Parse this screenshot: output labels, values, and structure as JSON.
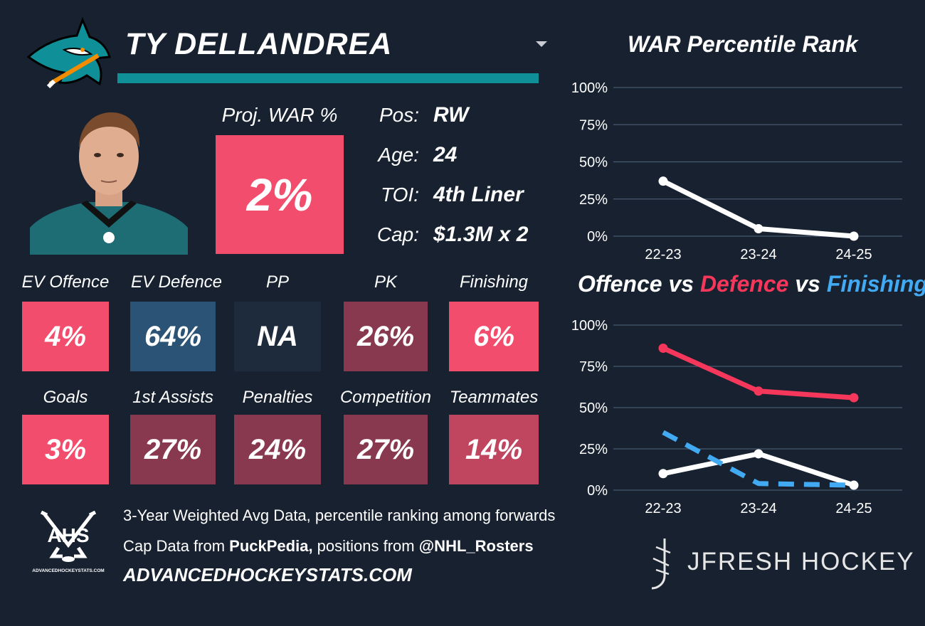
{
  "player": {
    "name": "TY DELLANDREA"
  },
  "colors": {
    "teal": "#0f8f98",
    "pink": "#f24d6c",
    "blue": "#2a5375",
    "dark": "#1d2b3c",
    "maroon": "#89394f",
    "line_white": "#ffffff",
    "line_red": "#f4375a",
    "line_blue": "#42aaf2"
  },
  "proj_war": {
    "label": "Proj. WAR %",
    "value": "2%"
  },
  "bio": [
    {
      "label": "Pos:",
      "value": "RW"
    },
    {
      "label": "Age:",
      "value": "24"
    },
    {
      "label": "TOI:",
      "value": "4th Liner"
    },
    {
      "label": "Cap:",
      "value": "$1.3M x 2"
    }
  ],
  "tiles_row1": [
    {
      "label": "EV Offence",
      "value": "4%",
      "color": "#f24d6c"
    },
    {
      "label": "EV Defence",
      "value": "64%",
      "color": "#2a5375"
    },
    {
      "label": "PP",
      "value": "NA",
      "color": "#1d2b3c"
    },
    {
      "label": "PK",
      "value": "26%",
      "color": "#89394f"
    },
    {
      "label": "Finishing",
      "value": "6%",
      "color": "#f24d6c"
    }
  ],
  "tiles_row2": [
    {
      "label": "Goals",
      "value": "3%",
      "color": "#f24d6c"
    },
    {
      "label": "1st Assists",
      "value": "27%",
      "color": "#89394f"
    },
    {
      "label": "Penalties",
      "value": "24%",
      "color": "#89394f"
    },
    {
      "label": "Competition",
      "value": "27%",
      "color": "#89394f"
    },
    {
      "label": "Teammates",
      "value": "14%",
      "color": "#c04660"
    }
  ],
  "footer": {
    "ahs_logo_text": "AHS",
    "ahs_logo_small": "ADVANCEDHOCKEYSTATS.COM",
    "line1": "3-Year Weighted Avg Data, percentile ranking among forwards",
    "line2_pre": "Cap Data from ",
    "line2_bold1": "PuckPedia,",
    "line2_mid": " positions from ",
    "line2_bold2": "@NHL_Rosters",
    "site": "ADVANCEDHOCKEYSTATS.COM",
    "brand": "JFRESH HOCKEY"
  },
  "chart_data": [
    {
      "type": "line",
      "title": "WAR Percentile Rank",
      "categories": [
        "22-23",
        "23-24",
        "24-25"
      ],
      "y_ticks": [
        "0%",
        "25%",
        "50%",
        "75%",
        "100%"
      ],
      "ylim": [
        0,
        100
      ],
      "series": [
        {
          "name": "WAR",
          "values": [
            37,
            5,
            0
          ],
          "color": "#ffffff",
          "dashed": false
        }
      ]
    },
    {
      "type": "line",
      "title_parts": [
        {
          "text": "Offence",
          "color": "#ffffff"
        },
        {
          "text": " vs ",
          "color": "#ffffff"
        },
        {
          "text": "Defence",
          "color": "#f4375a"
        },
        {
          "text": " vs ",
          "color": "#ffffff"
        },
        {
          "text": "Finishing",
          "color": "#42aaf2"
        }
      ],
      "categories": [
        "22-23",
        "23-24",
        "24-25"
      ],
      "y_ticks": [
        "0%",
        "25%",
        "50%",
        "75%",
        "100%"
      ],
      "ylim": [
        0,
        100
      ],
      "series": [
        {
          "name": "Offence",
          "values": [
            10,
            22,
            3
          ],
          "color": "#ffffff",
          "dashed": false
        },
        {
          "name": "Defence",
          "values": [
            86,
            60,
            56
          ],
          "color": "#f4375a",
          "dashed": false
        },
        {
          "name": "Finishing",
          "values": [
            35,
            4,
            3
          ],
          "color": "#42aaf2",
          "dashed": true
        }
      ]
    }
  ]
}
